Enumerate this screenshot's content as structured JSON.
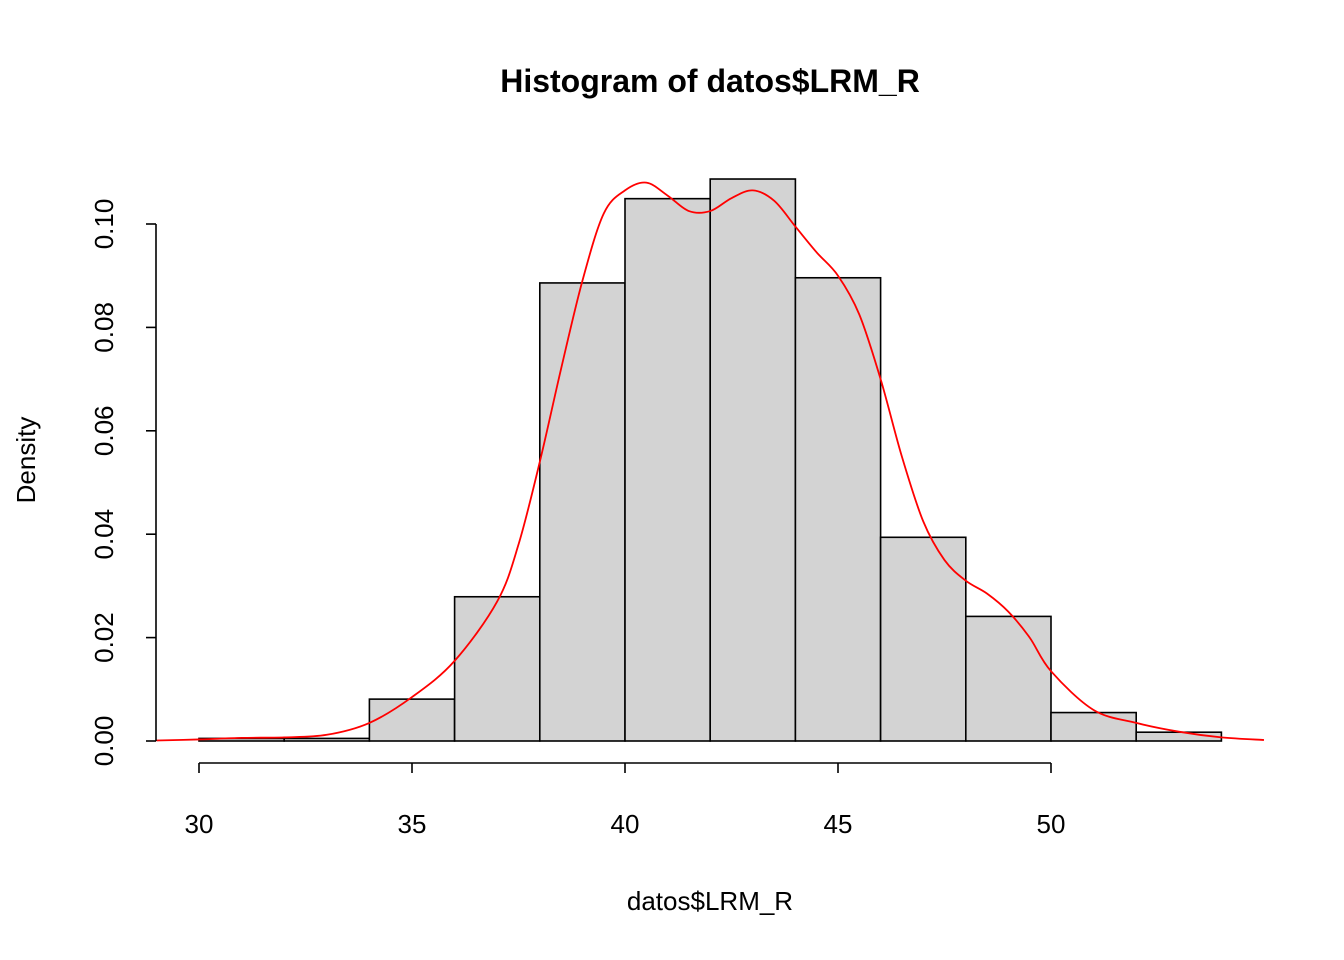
{
  "chart_data": {
    "type": "bar",
    "title": "Histogram of datos$LRM_R",
    "xlabel": "datos$LRM_R",
    "ylabel": "Density",
    "xlim": [
      29.2,
      55
    ],
    "ylim": [
      0,
      0.109
    ],
    "x_ticks": [
      30,
      35,
      40,
      45,
      50
    ],
    "y_ticks": [
      0.0,
      0.02,
      0.04,
      0.06,
      0.08,
      0.1
    ],
    "y_tick_labels": [
      "0.00",
      "0.02",
      "0.04",
      "0.06",
      "0.08",
      "0.10"
    ],
    "grid": false,
    "bin_edges": [
      30,
      32,
      34,
      36,
      38,
      40,
      42,
      44,
      46,
      48,
      50,
      52,
      54
    ],
    "values": [
      0.0005,
      0.0005,
      0.0081,
      0.0279,
      0.0886,
      0.1049,
      0.1087,
      0.0896,
      0.0394,
      0.0241,
      0.0055,
      0.0017
    ],
    "bar_fill": "#d3d3d3",
    "density_curve": {
      "color": "#ff0000",
      "x": [
        29,
        30,
        31,
        32,
        33,
        34,
        35,
        36,
        37,
        37.5,
        38,
        38.5,
        39,
        39.5,
        40,
        40.5,
        41,
        41.5,
        42,
        42.5,
        43,
        43.5,
        44,
        44.5,
        45,
        45.5,
        46,
        46.5,
        47,
        47.5,
        48,
        48.5,
        49,
        49.5,
        50,
        51,
        52,
        53,
        54,
        55
      ],
      "y": [
        0.0001,
        0.0003,
        0.0006,
        0.0007,
        0.0012,
        0.0035,
        0.0085,
        0.0155,
        0.027,
        0.038,
        0.054,
        0.072,
        0.089,
        0.102,
        0.1065,
        0.108,
        0.1055,
        0.1025,
        0.1025,
        0.105,
        0.1065,
        0.1045,
        0.0995,
        0.0945,
        0.09,
        0.0825,
        0.07,
        0.055,
        0.0425,
        0.035,
        0.031,
        0.0285,
        0.025,
        0.02,
        0.0135,
        0.006,
        0.0035,
        0.0018,
        0.0007,
        0.0002
      ]
    }
  }
}
